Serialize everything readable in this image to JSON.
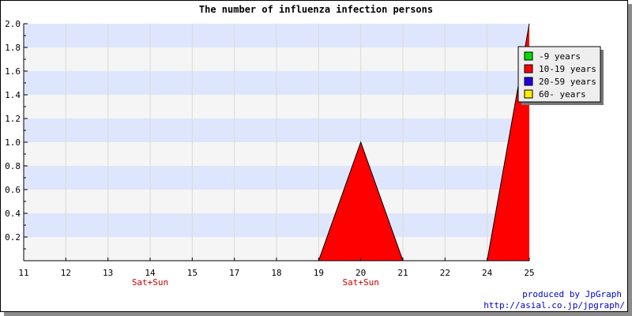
{
  "chart_data": {
    "type": "area",
    "title": "The number of influenza infection persons",
    "categories": [
      "11",
      "12",
      "13",
      "14",
      "15",
      "17",
      "18",
      "19",
      "20",
      "21",
      "22",
      "24",
      "25"
    ],
    "sublabels": [
      "",
      "",
      "",
      "Sat+Sun",
      "",
      "",
      "",
      "",
      "Sat+Sun",
      "",
      "",
      "",
      ""
    ],
    "ylim": [
      0,
      2.0
    ],
    "yticks": [
      "0.2",
      "0.4",
      "0.6",
      "0.8",
      "1.0",
      "1.2",
      "1.4",
      "1.6",
      "1.8",
      "2.0"
    ],
    "series": [
      {
        "name": "-9 years",
        "color": "#00dd00",
        "values": [
          0,
          0,
          0,
          0,
          0,
          0,
          0,
          0,
          0,
          0,
          0,
          0,
          0
        ]
      },
      {
        "name": "10-19 years",
        "color": "#ff0000",
        "values": [
          0,
          0,
          0,
          0,
          0,
          0,
          0,
          0,
          1,
          0,
          0,
          0,
          2
        ]
      },
      {
        "name": "20-59 years",
        "color": "#2200dd",
        "values": [
          0,
          0,
          0,
          0,
          0,
          0,
          0,
          0,
          0,
          0,
          0,
          0,
          0
        ]
      },
      {
        "name": "60- years",
        "color": "#ffee00",
        "values": [
          0,
          0,
          0,
          0,
          0,
          0,
          0,
          0,
          0,
          0,
          0,
          0,
          0
        ]
      }
    ],
    "grid": true,
    "legend_position": "top-right"
  },
  "credit": {
    "line1": "produced by JpGraph",
    "line2": "http://asial.co.jp/jpgraph/"
  }
}
